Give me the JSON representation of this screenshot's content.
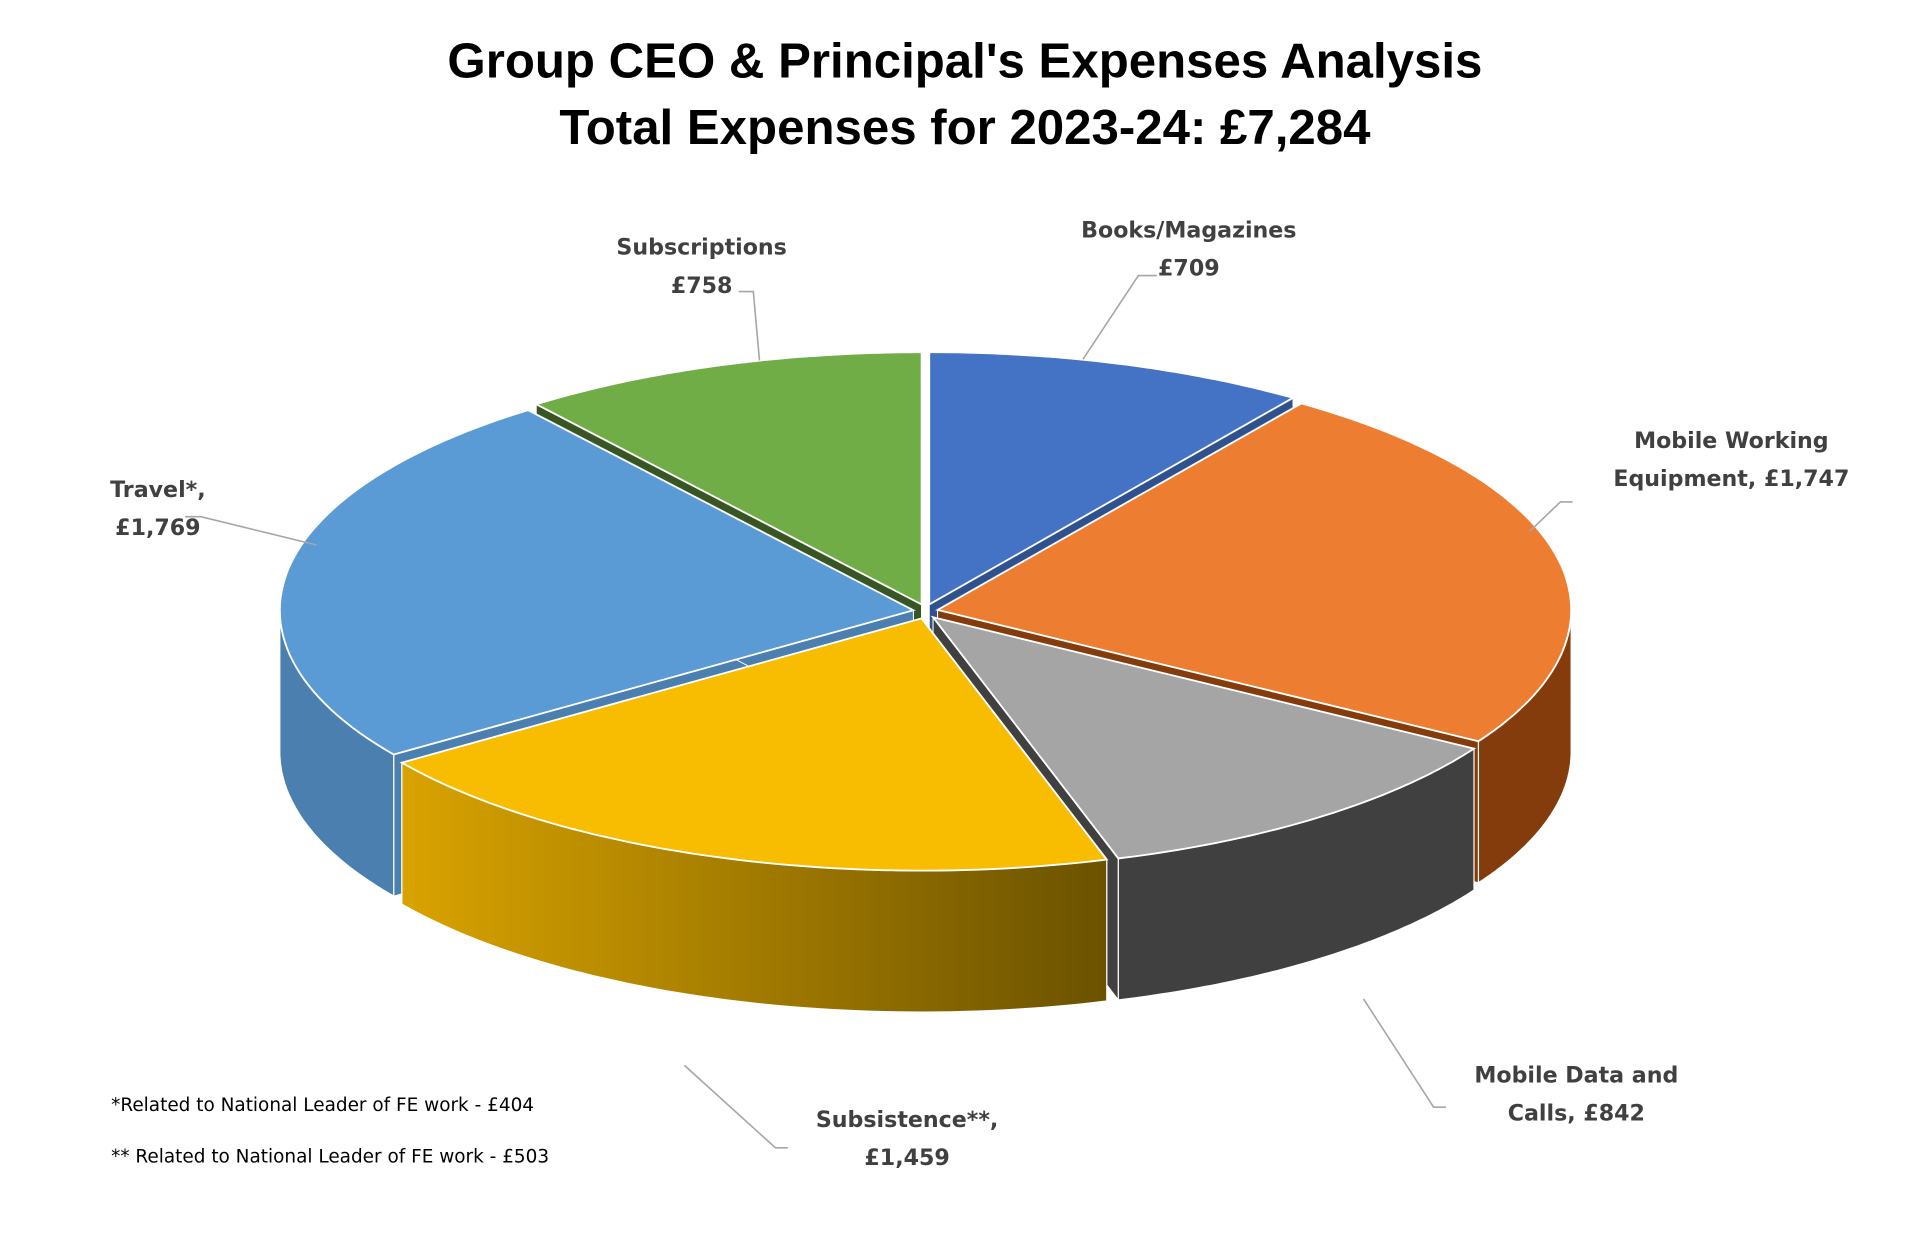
{
  "chart_data": {
    "type": "pie",
    "variant": "3d-exploded",
    "title": "Group CEO & Principal's Expenses Analysis",
    "subtitle": "Total Expenses for 2023-24: £7,284",
    "currency": "£",
    "slices": [
      {
        "label": "Books/Magazines",
        "value": 709,
        "display_line1": "Books/Magazines",
        "display_line2": "£709",
        "color": "#4472C4",
        "side": "#2F528F"
      },
      {
        "label": "Mobile Working Equipment",
        "value": 1747,
        "display_line1": "Mobile Working",
        "display_line2": "Equipment, £1,747",
        "color": "#ED7D31",
        "side": "#843C0C"
      },
      {
        "label": "Mobile Data and Calls",
        "value": 842,
        "display_line1": "Mobile Data and",
        "display_line2": "Calls, £842",
        "color": "#A5A5A5",
        "side": "#404040"
      },
      {
        "label": "Subsistence**",
        "value": 1459,
        "display_line1": "Subsistence**,",
        "display_line2": "£1,459",
        "color": "#F8BC00",
        "side": "#C99A00"
      },
      {
        "label": "Travel*",
        "value": 1769,
        "display_line1": "Travel*,",
        "display_line2": "£1,769",
        "color": "#5B9BD5",
        "side": "#4A7FB0"
      },
      {
        "label": "Subscriptions",
        "value": 758,
        "display_line1": "Subscriptions",
        "display_line2": "£758",
        "color": "#70AD47",
        "side": "#375623"
      }
    ],
    "legend": "none (data labels)"
  },
  "footnotes": [
    "*Related to National Leader of FE work - £404",
    "** Related to National Leader of FE work - £503"
  ]
}
